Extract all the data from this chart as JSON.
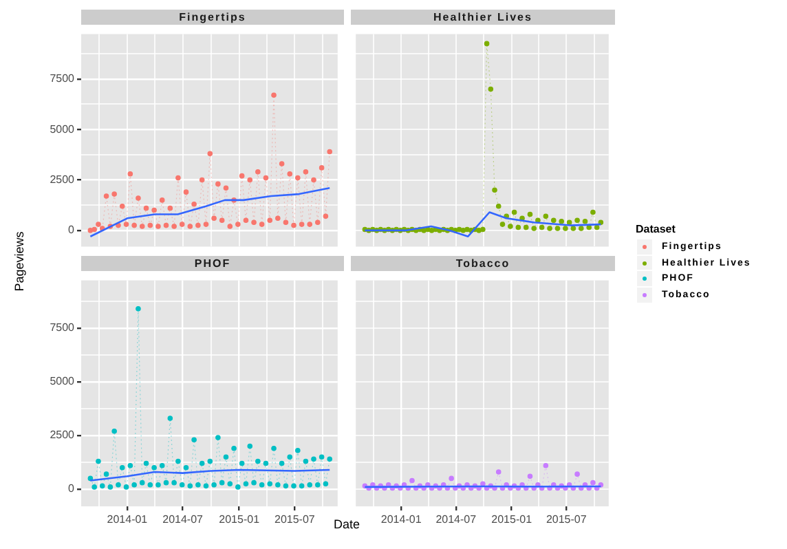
{
  "chart_data": [
    {
      "type": "line",
      "title": "Fingertips",
      "ylabel": "Pageviews",
      "legend": "right",
      "legend_title": "Dataset",
      "grid": true,
      "tick_labels": "y",
      "xlim": [
        "2013-08-04",
        "2015-11-18"
      ],
      "ylim": [
        -800,
        9720
      ],
      "xticks": [
        {
          "value": "2013-10-01",
          "label": null
        },
        {
          "value": "2014-01-01",
          "label": null
        },
        {
          "value": "2014-04-01",
          "label": null
        },
        {
          "value": "2014-07-01",
          "label": null
        },
        {
          "value": "2014-10-01",
          "label": null
        },
        {
          "value": "2015-01-01",
          "label": null
        },
        {
          "value": "2015-04-01",
          "label": null
        },
        {
          "value": "2015-07-01",
          "label": null
        },
        {
          "value": "2015-10-01",
          "label": null
        }
      ],
      "yticks": [
        0,
        {
          "value": 1250,
          "label": null
        },
        2500,
        {
          "value": 3750,
          "label": null
        },
        5000,
        {
          "value": 6250,
          "label": null
        },
        7500,
        {
          "value": 8750,
          "label": null
        }
      ],
      "x": [
        "2013-09-03",
        "2013-09-16",
        "2013-09-29",
        "2013-10-12",
        "2013-10-25",
        "2013-11-07",
        "2013-11-20",
        "2013-12-03",
        "2013-12-16",
        "2013-12-29",
        "2014-01-11",
        "2014-01-24",
        "2014-02-06",
        "2014-02-19",
        "2014-03-04",
        "2014-03-17",
        "2014-03-30",
        "2014-04-12",
        "2014-04-25",
        "2014-05-08",
        "2014-05-21",
        "2014-06-03",
        "2014-06-16",
        "2014-06-29",
        "2014-07-12",
        "2014-07-25",
        "2014-08-07",
        "2014-08-20",
        "2014-09-02",
        "2014-09-15",
        "2014-09-28",
        "2014-10-11",
        "2014-10-24",
        "2014-11-06",
        "2014-11-19",
        "2014-12-02",
        "2014-12-15",
        "2014-12-28",
        "2015-01-10",
        "2015-01-23",
        "2015-02-05",
        "2015-02-18",
        "2015-03-03",
        "2015-03-16",
        "2015-03-29",
        "2015-04-11",
        "2015-04-24",
        "2015-05-07",
        "2015-05-20",
        "2015-06-02",
        "2015-06-15",
        "2015-06-28",
        "2015-07-11",
        "2015-07-24",
        "2015-08-06",
        "2015-08-19",
        "2015-09-01",
        "2015-09-14",
        "2015-09-27",
        "2015-10-10",
        "2015-10-23"
      ],
      "series": [
        {
          "type": "line",
          "name": "Fingertips",
          "color": "#f8766d",
          "marker": "circle",
          "line_style": "dotted",
          "values": [
            0,
            50,
            300,
            100,
            1700,
            200,
            1800,
            250,
            1200,
            300,
            2800,
            250,
            1600,
            200,
            1100,
            250,
            1000,
            200,
            1500,
            250,
            1100,
            200,
            2600,
            300,
            1900,
            200,
            1300,
            250,
            2500,
            300,
            3800,
            600,
            2300,
            500,
            2100,
            200,
            1500,
            300,
            2700,
            500,
            2500,
            400,
            2900,
            300,
            2600,
            500,
            6700,
            600,
            3300,
            400,
            2800,
            250,
            2600,
            300,
            2900,
            300,
            2500,
            400,
            3100,
            700,
            3900
          ]
        },
        {
          "type": "line",
          "color": "#3366ff",
          "marker": "none",
          "line_style": "solid",
          "x": [
            "2013-09-03",
            "2014-01-01",
            "2014-04-01",
            "2014-06-15",
            "2014-09-15",
            "2014-11-15",
            "2015-01-15",
            "2015-04-15",
            "2015-07-15",
            "2015-10-23"
          ],
          "values": [
            -300,
            600,
            800,
            800,
            1200,
            1500,
            1500,
            1700,
            1800,
            2100
          ]
        }
      ]
    },
    {
      "type": "line",
      "title": "Healthier Lives",
      "legend": "right",
      "grid": true,
      "tick_labels": false,
      "xlim": [
        "2013-08-04",
        "2015-11-18"
      ],
      "ylim": [
        -800,
        9720
      ],
      "xticks": [
        {
          "value": "2013-10-01",
          "label": null
        },
        {
          "value": "2014-01-01",
          "label": null
        },
        {
          "value": "2014-04-01",
          "label": null
        },
        {
          "value": "2014-07-01",
          "label": null
        },
        {
          "value": "2014-10-01",
          "label": null
        },
        {
          "value": "2015-01-01",
          "label": null
        },
        {
          "value": "2015-04-01",
          "label": null
        },
        {
          "value": "2015-07-01",
          "label": null
        },
        {
          "value": "2015-10-01",
          "label": null
        }
      ],
      "yticks": [
        0,
        {
          "value": 1250,
          "label": null
        },
        2500,
        {
          "value": 3750,
          "label": null
        },
        5000,
        {
          "value": 6250,
          "label": null
        },
        7500,
        {
          "value": 8750,
          "label": null
        }
      ],
      "x": [
        "2013-09-03",
        "2013-09-16",
        "2013-09-29",
        "2013-10-12",
        "2013-10-25",
        "2013-11-07",
        "2013-11-20",
        "2013-12-03",
        "2013-12-16",
        "2013-12-29",
        "2014-01-11",
        "2014-01-24",
        "2014-02-06",
        "2014-02-19",
        "2014-03-04",
        "2014-03-17",
        "2014-03-30",
        "2014-04-12",
        "2014-04-25",
        "2014-05-08",
        "2014-05-21",
        "2014-06-03",
        "2014-06-16",
        "2014-06-29",
        "2014-07-12",
        "2014-07-25",
        "2014-08-07",
        "2014-08-20",
        "2014-09-02",
        "2014-09-15",
        "2014-09-28",
        "2014-10-11",
        "2014-10-24",
        "2014-11-06",
        "2014-11-19",
        "2014-12-02",
        "2014-12-15",
        "2014-12-28",
        "2015-01-10",
        "2015-01-23",
        "2015-02-05",
        "2015-02-18",
        "2015-03-03",
        "2015-03-16",
        "2015-03-29",
        "2015-04-11",
        "2015-04-24",
        "2015-05-07",
        "2015-05-20",
        "2015-06-02",
        "2015-06-15",
        "2015-06-28",
        "2015-07-11",
        "2015-07-24",
        "2015-08-06",
        "2015-08-19",
        "2015-09-01",
        "2015-09-14",
        "2015-09-27",
        "2015-10-10",
        "2015-10-23"
      ],
      "series": [
        {
          "type": "line",
          "name": "Healthier Lives",
          "color": "#7cae00",
          "marker": "circle",
          "line_style": "dotted",
          "values": [
            50,
            0,
            50,
            0,
            50,
            0,
            50,
            0,
            50,
            0,
            50,
            0,
            50,
            0,
            50,
            0,
            50,
            0,
            50,
            0,
            50,
            0,
            50,
            0,
            50,
            0,
            50,
            0,
            50,
            0,
            50,
            9250,
            7000,
            2000,
            1200,
            300,
            700,
            200,
            900,
            150,
            600,
            150,
            800,
            100,
            500,
            150,
            700,
            100,
            500,
            100,
            450,
            100,
            400,
            100,
            500,
            100,
            450,
            150,
            900,
            150,
            400
          ]
        },
        {
          "type": "line",
          "color": "#3366ff",
          "marker": "none",
          "line_style": "solid",
          "x": [
            "2013-09-03",
            "2014-01-15",
            "2014-04-10",
            "2014-06-10",
            "2014-08-10",
            "2014-10-20",
            "2014-12-15",
            "2015-03-15",
            "2015-07-15",
            "2015-10-23"
          ],
          "values": [
            0,
            0,
            200,
            0,
            -300,
            900,
            600,
            400,
            250,
            300
          ]
        }
      ]
    },
    {
      "type": "line",
      "title": "PHOF",
      "xlabel": "Date",
      "legend": "right",
      "grid": true,
      "xlim": [
        "2013-08-04",
        "2015-11-18"
      ],
      "ylim": [
        -800,
        9720
      ],
      "xticks": [
        {
          "value": "2013-10-01",
          "label": null
        },
        {
          "value": "2014-01-01",
          "label": "2014-01"
        },
        {
          "value": "2014-04-01",
          "label": null
        },
        {
          "value": "2014-07-01",
          "label": "2014-07"
        },
        {
          "value": "2014-10-01",
          "label": null
        },
        {
          "value": "2015-01-01",
          "label": "2015-01"
        },
        {
          "value": "2015-04-01",
          "label": null
        },
        {
          "value": "2015-07-01",
          "label": "2015-07"
        },
        {
          "value": "2015-10-01",
          "label": null
        }
      ],
      "yticks": [
        0,
        {
          "value": 1250,
          "label": null
        },
        2500,
        {
          "value": 3750,
          "label": null
        },
        5000,
        {
          "value": 6250,
          "label": null
        },
        7500,
        {
          "value": 8750,
          "label": null
        }
      ],
      "x": [
        "2013-09-03",
        "2013-09-16",
        "2013-09-29",
        "2013-10-12",
        "2013-10-25",
        "2013-11-07",
        "2013-11-20",
        "2013-12-03",
        "2013-12-16",
        "2013-12-29",
        "2014-01-11",
        "2014-01-24",
        "2014-02-06",
        "2014-02-19",
        "2014-03-04",
        "2014-03-17",
        "2014-03-30",
        "2014-04-12",
        "2014-04-25",
        "2014-05-08",
        "2014-05-21",
        "2014-06-03",
        "2014-06-16",
        "2014-06-29",
        "2014-07-12",
        "2014-07-25",
        "2014-08-07",
        "2014-08-20",
        "2014-09-02",
        "2014-09-15",
        "2014-09-28",
        "2014-10-11",
        "2014-10-24",
        "2014-11-06",
        "2014-11-19",
        "2014-12-02",
        "2014-12-15",
        "2014-12-28",
        "2015-01-10",
        "2015-01-23",
        "2015-02-05",
        "2015-02-18",
        "2015-03-03",
        "2015-03-16",
        "2015-03-29",
        "2015-04-11",
        "2015-04-24",
        "2015-05-07",
        "2015-05-20",
        "2015-06-02",
        "2015-06-15",
        "2015-06-28",
        "2015-07-11",
        "2015-07-24",
        "2015-08-06",
        "2015-08-19",
        "2015-09-01",
        "2015-09-14",
        "2015-09-27",
        "2015-10-10",
        "2015-10-23"
      ],
      "series": [
        {
          "type": "line",
          "name": "PHOF",
          "color": "#00bfc4",
          "marker": "circle",
          "line_style": "dotted",
          "values": [
            500,
            100,
            1300,
            150,
            700,
            100,
            2700,
            200,
            1000,
            100,
            1100,
            200,
            8400,
            300,
            1200,
            200,
            1000,
            200,
            1100,
            300,
            3300,
            300,
            1300,
            200,
            1000,
            150,
            2300,
            200,
            1200,
            150,
            1300,
            200,
            2400,
            300,
            1500,
            250,
            1900,
            100,
            1200,
            250,
            2000,
            300,
            1300,
            200,
            1200,
            250,
            1900,
            200,
            1200,
            150,
            1500,
            150,
            1800,
            150,
            1300,
            200,
            1400,
            200,
            1500,
            250,
            1400
          ]
        },
        {
          "type": "line",
          "color": "#3366ff",
          "marker": "none",
          "line_style": "solid",
          "x": [
            "2013-09-03",
            "2014-01-01",
            "2014-04-01",
            "2014-07-01",
            "2014-10-01",
            "2015-01-01",
            "2015-07-01",
            "2015-10-23"
          ],
          "values": [
            400,
            600,
            800,
            750,
            850,
            900,
            850,
            900
          ]
        }
      ]
    },
    {
      "type": "line",
      "title": "Tobacco",
      "legend": "right",
      "grid": true,
      "tick_labels": "x",
      "xlim": [
        "2013-08-04",
        "2015-11-18"
      ],
      "ylim": [
        -800,
        9720
      ],
      "xticks": [
        {
          "value": "2013-10-01",
          "label": null
        },
        {
          "value": "2014-01-01",
          "label": "2014-01"
        },
        {
          "value": "2014-04-01",
          "label": null
        },
        {
          "value": "2014-07-01",
          "label": "2014-07"
        },
        {
          "value": "2014-10-01",
          "label": null
        },
        {
          "value": "2015-01-01",
          "label": "2015-01"
        },
        {
          "value": "2015-04-01",
          "label": null
        },
        {
          "value": "2015-07-01",
          "label": "2015-07"
        },
        {
          "value": "2015-10-01",
          "label": null
        }
      ],
      "yticks": [
        0,
        {
          "value": 1250,
          "label": null
        },
        2500,
        {
          "value": 3750,
          "label": null
        },
        5000,
        {
          "value": 6250,
          "label": null
        },
        7500,
        {
          "value": 8750,
          "label": null
        }
      ],
      "x": [
        "2013-09-03",
        "2013-09-16",
        "2013-09-29",
        "2013-10-12",
        "2013-10-25",
        "2013-11-07",
        "2013-11-20",
        "2013-12-03",
        "2013-12-16",
        "2013-12-29",
        "2014-01-11",
        "2014-01-24",
        "2014-02-06",
        "2014-02-19",
        "2014-03-04",
        "2014-03-17",
        "2014-03-30",
        "2014-04-12",
        "2014-04-25",
        "2014-05-08",
        "2014-05-21",
        "2014-06-03",
        "2014-06-16",
        "2014-06-29",
        "2014-07-12",
        "2014-07-25",
        "2014-08-07",
        "2014-08-20",
        "2014-09-02",
        "2014-09-15",
        "2014-09-28",
        "2014-10-11",
        "2014-10-24",
        "2014-11-06",
        "2014-11-19",
        "2014-12-02",
        "2014-12-15",
        "2014-12-28",
        "2015-01-10",
        "2015-01-23",
        "2015-02-05",
        "2015-02-18",
        "2015-03-03",
        "2015-03-16",
        "2015-03-29",
        "2015-04-11",
        "2015-04-24",
        "2015-05-07",
        "2015-05-20",
        "2015-06-02",
        "2015-06-15",
        "2015-06-28",
        "2015-07-11",
        "2015-07-24",
        "2015-08-06",
        "2015-08-19",
        "2015-09-01",
        "2015-09-14",
        "2015-09-27",
        "2015-10-10",
        "2015-10-23"
      ],
      "series": [
        {
          "type": "line",
          "name": "Tobacco",
          "color": "#c77cff",
          "marker": "circle",
          "line_style": "dotted",
          "values": [
            150,
            50,
            200,
            50,
            150,
            50,
            200,
            50,
            150,
            50,
            200,
            50,
            400,
            50,
            150,
            50,
            200,
            50,
            150,
            50,
            200,
            50,
            500,
            50,
            150,
            50,
            200,
            50,
            150,
            50,
            250,
            50,
            150,
            50,
            800,
            50,
            200,
            50,
            150,
            50,
            200,
            50,
            600,
            50,
            200,
            50,
            1100,
            50,
            200,
            50,
            150,
            50,
            200,
            50,
            700,
            50,
            200,
            50,
            300,
            50,
            200
          ]
        },
        {
          "type": "line",
          "color": "#3366ff",
          "marker": "none",
          "line_style": "solid",
          "x": [
            "2013-09-03",
            "2014-04-01",
            "2014-10-01",
            "2015-04-01",
            "2015-10-23"
          ],
          "values": [
            100,
            120,
            130,
            120,
            130
          ]
        }
      ]
    }
  ]
}
